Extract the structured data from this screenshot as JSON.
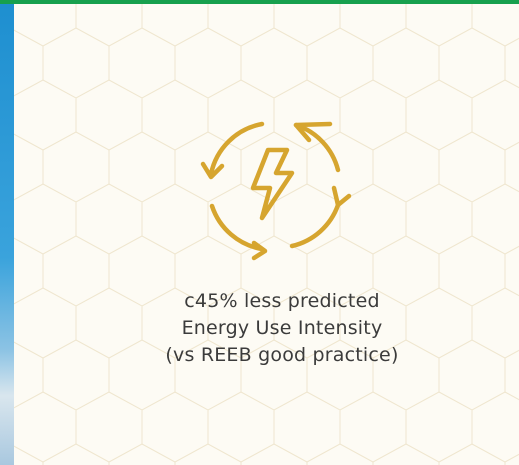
{
  "caption": {
    "lines": [
      "c45% less predicted",
      "Energy Use Intensity",
      "(vs REEB good practice)"
    ]
  }
}
